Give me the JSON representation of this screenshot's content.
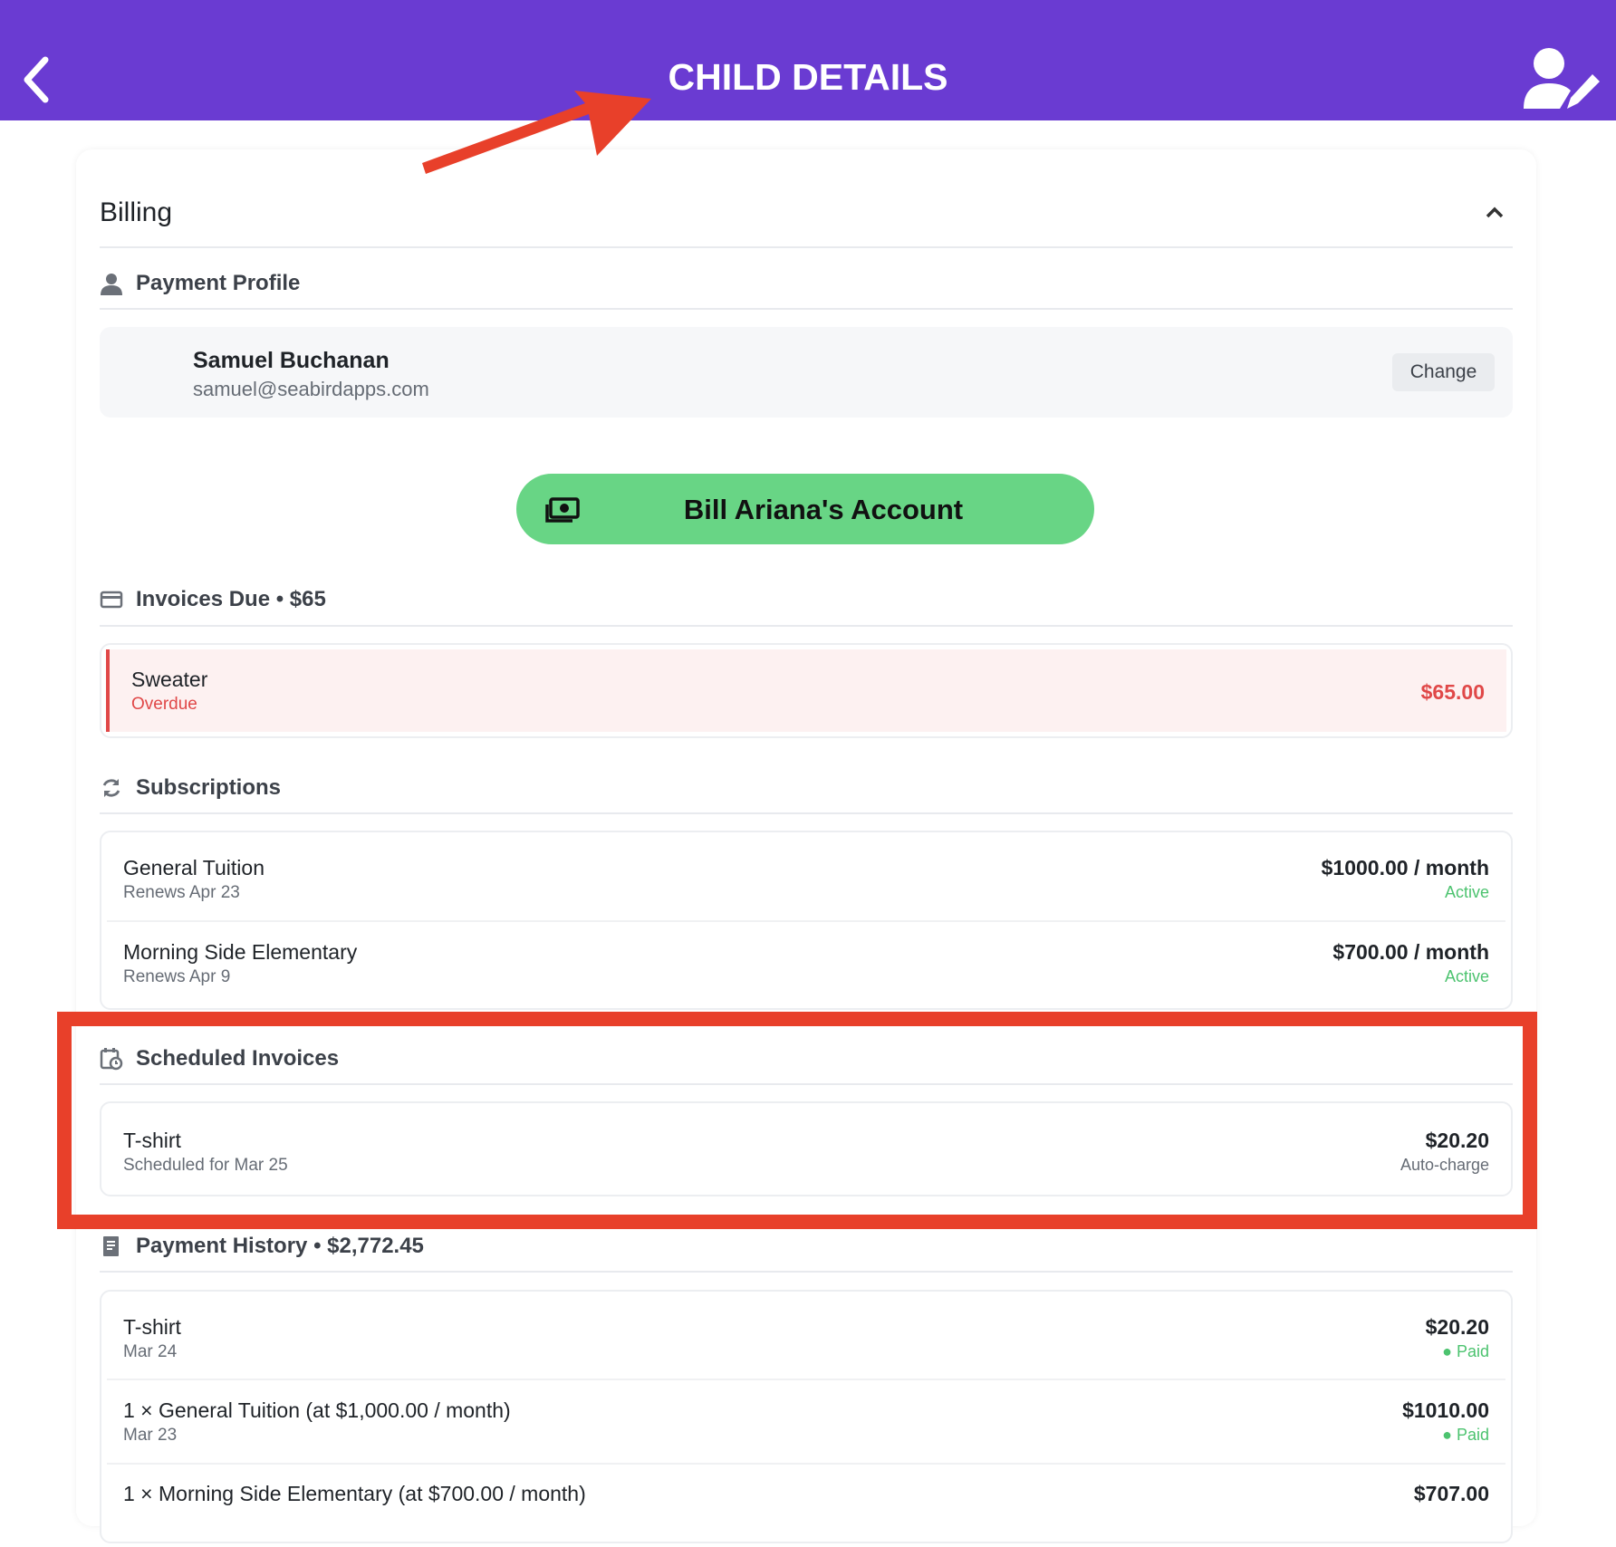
{
  "header": {
    "title": "CHILD DETAILS",
    "back_icon": "chevron-left-icon",
    "edit_icon": "user-edit-icon",
    "color": "#6a3bd2"
  },
  "billing": {
    "title": "Billing"
  },
  "payment_profile": {
    "heading": "Payment Profile",
    "name": "Samuel Buchanan",
    "email": "samuel@seabirdapps.com",
    "change_label": "Change"
  },
  "bill_button": {
    "label": "Bill Ariana's Account",
    "color": "#68d585"
  },
  "invoices_due": {
    "heading": "Invoices Due • $65",
    "items": [
      {
        "title": "Sweater",
        "status": "Overdue",
        "amount": "$65.00"
      }
    ]
  },
  "subscriptions": {
    "heading": "Subscriptions",
    "items": [
      {
        "title": "General Tuition",
        "sub": "Renews Apr 23",
        "amount": "$1000.00 / month",
        "status": "Active"
      },
      {
        "title": "Morning Side Elementary",
        "sub": "Renews Apr 9",
        "amount": "$700.00 / month",
        "status": "Active"
      }
    ]
  },
  "scheduled": {
    "heading": "Scheduled Invoices",
    "items": [
      {
        "title": "T-shirt",
        "sub": "Scheduled for Mar 25",
        "amount": "$20.20",
        "status": "Auto-charge"
      }
    ]
  },
  "history": {
    "heading": "Payment History • $2,772.45",
    "items": [
      {
        "title": "T-shirt",
        "sub": "Mar 24",
        "amount": "$20.20",
        "status": "Paid"
      },
      {
        "title": "1 × General Tuition (at $1,000.00 / month)",
        "sub": "Mar 23",
        "amount": "$1010.00",
        "status": "Paid"
      },
      {
        "title": "1 × Morning Side Elementary (at $700.00 / month)",
        "amount": "$707.00"
      }
    ]
  },
  "annotations": {
    "highlight_color": "#e8402a"
  }
}
